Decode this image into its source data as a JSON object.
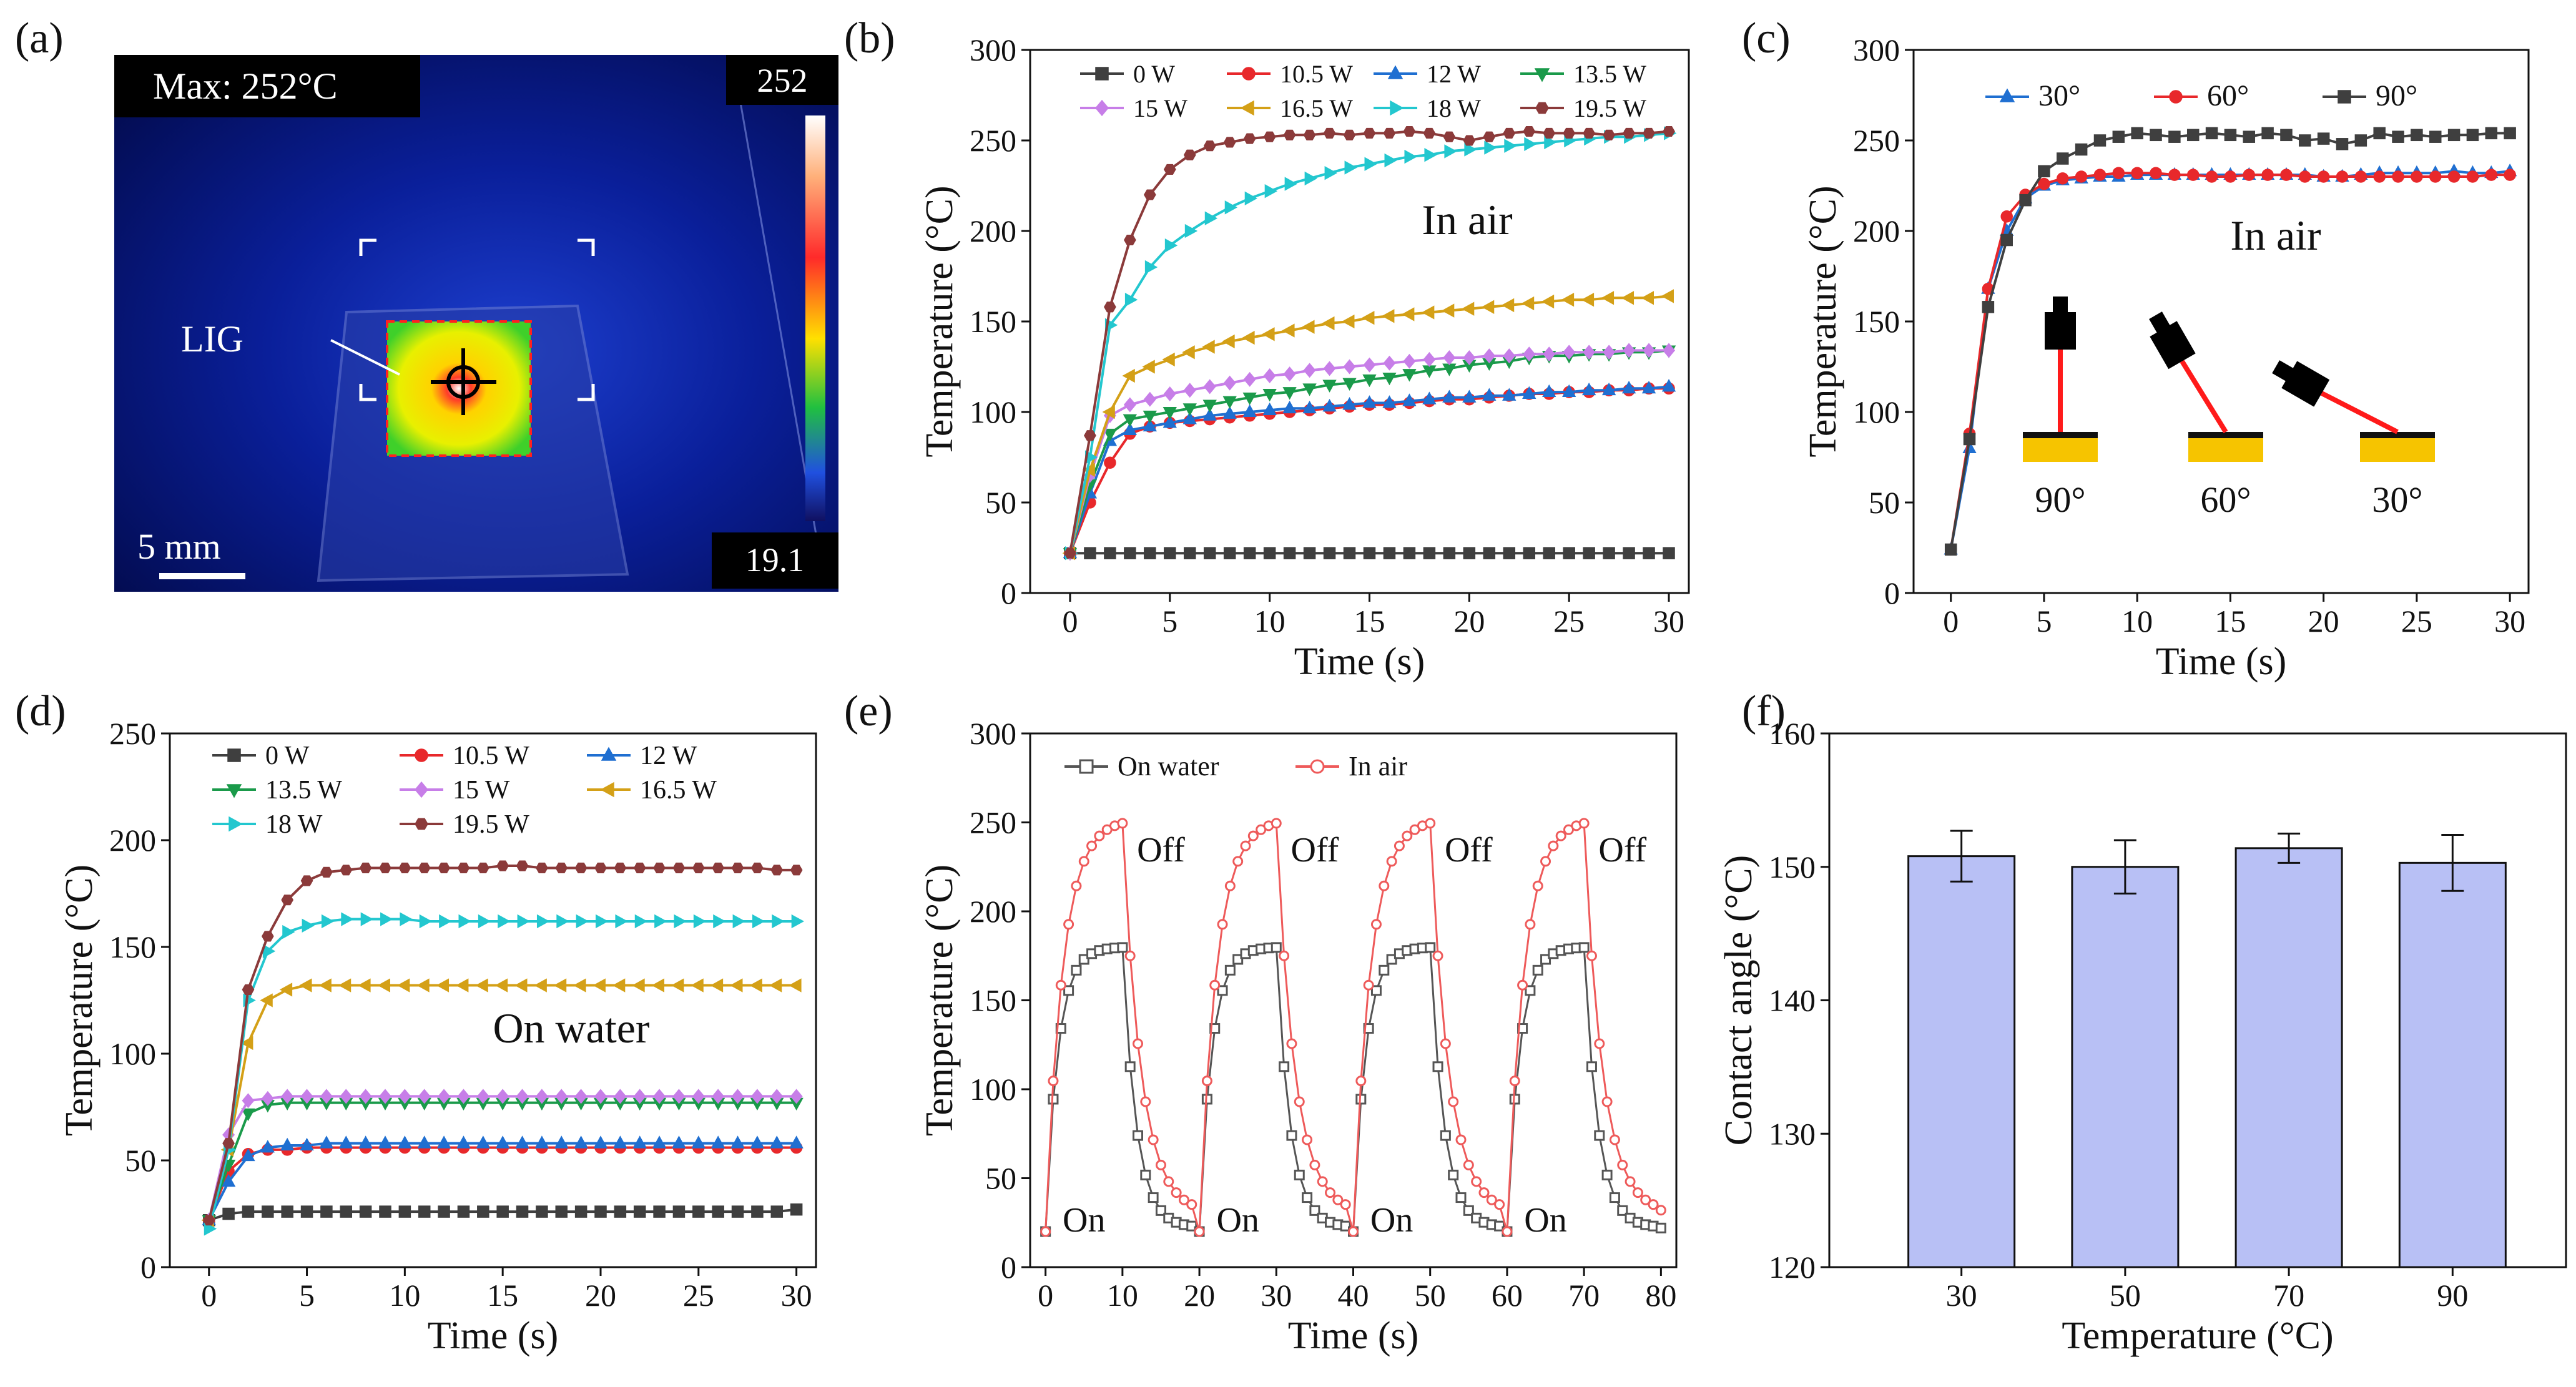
{
  "panel_labels": [
    "(a)",
    "(b)",
    "(c)",
    "(d)",
    "(e)",
    "(f)"
  ],
  "thermal_image": {
    "max_label": "Max: 252°C",
    "scale_max": "252",
    "scale_min": "19.1",
    "scale_bar": "5 mm",
    "annotation": "LIG"
  },
  "chart_data": [
    {
      "panel": "(b)",
      "type": "line",
      "title": "",
      "xlabel": "Time (s)",
      "ylabel": "Temperature (°C)",
      "xlim": [
        -2,
        31
      ],
      "ylim": [
        0,
        300
      ],
      "xticks": [
        0,
        5,
        10,
        15,
        20,
        25,
        30
      ],
      "yticks": [
        0,
        50,
        100,
        150,
        200,
        250,
        300
      ],
      "annotation": "In air",
      "x": [
        0,
        1,
        2,
        3,
        4,
        5,
        6,
        7,
        8,
        9,
        10,
        11,
        12,
        13,
        14,
        15,
        16,
        17,
        18,
        19,
        20,
        21,
        22,
        23,
        24,
        25,
        26,
        27,
        28,
        29,
        30
      ],
      "series": [
        {
          "name": "0 W",
          "color": "#3f3f3f",
          "marker": "square",
          "values": [
            22,
            22,
            22,
            22,
            22,
            22,
            22,
            22,
            22,
            22,
            22,
            22,
            22,
            22,
            22,
            22,
            22,
            22,
            22,
            22,
            22,
            22,
            22,
            22,
            22,
            22,
            22,
            22,
            22,
            22,
            22
          ]
        },
        {
          "name": "10.5 W",
          "color": "#e8282b",
          "marker": "circle",
          "values": [
            22,
            50,
            72,
            88,
            92,
            94,
            95,
            96,
            97,
            98,
            99,
            100,
            101,
            102,
            103,
            104,
            104,
            105,
            106,
            107,
            107,
            108,
            109,
            110,
            110,
            111,
            111,
            112,
            112,
            113,
            113
          ]
        },
        {
          "name": "12 W",
          "color": "#1f6fd1",
          "marker": "triangle-up",
          "values": [
            22,
            55,
            84,
            90,
            92,
            94,
            96,
            98,
            99,
            100,
            101,
            102,
            102,
            103,
            104,
            105,
            105,
            106,
            107,
            108,
            108,
            109,
            109,
            110,
            111,
            111,
            112,
            112,
            113,
            113,
            114
          ]
        },
        {
          "name": "13.5 W",
          "color": "#1a9a4a",
          "marker": "triangle-down",
          "values": [
            22,
            60,
            88,
            96,
            98,
            100,
            102,
            104,
            106,
            108,
            110,
            111,
            113,
            115,
            116,
            118,
            119,
            121,
            123,
            124,
            126,
            127,
            128,
            130,
            131,
            131,
            132,
            132,
            133,
            133,
            134
          ]
        },
        {
          "name": "15 W",
          "color": "#c77ee8",
          "marker": "diamond",
          "values": [
            22,
            65,
            98,
            104,
            107,
            110,
            112,
            114,
            116,
            118,
            120,
            121,
            123,
            124,
            125,
            126,
            127,
            128,
            129,
            130,
            130,
            131,
            131,
            132,
            132,
            133,
            133,
            133,
            134,
            134,
            134
          ]
        },
        {
          "name": "16.5 W",
          "color": "#d4a017",
          "marker": "triangle-left",
          "values": [
            22,
            68,
            100,
            120,
            125,
            129,
            133,
            136,
            139,
            141,
            143,
            145,
            147,
            149,
            150,
            152,
            153,
            154,
            155,
            156,
            157,
            158,
            159,
            160,
            161,
            162,
            162,
            163,
            163,
            163,
            164
          ]
        },
        {
          "name": "18 W",
          "color": "#23c7cf",
          "marker": "triangle-right",
          "values": [
            22,
            75,
            148,
            162,
            180,
            192,
            200,
            207,
            213,
            218,
            222,
            226,
            229,
            232,
            235,
            237,
            239,
            241,
            242,
            244,
            245,
            246,
            247,
            248,
            249,
            250,
            251,
            252,
            252,
            253,
            254
          ]
        },
        {
          "name": "19.5 W",
          "color": "#8b3a3a",
          "marker": "hexagon",
          "values": [
            22,
            87,
            158,
            195,
            220,
            234,
            242,
            247,
            249,
            251,
            252,
            253,
            253,
            254,
            253,
            254,
            254,
            255,
            254,
            252,
            250,
            252,
            254,
            255,
            254,
            254,
            254,
            253,
            254,
            254,
            255
          ]
        }
      ]
    },
    {
      "panel": "(c)",
      "type": "line",
      "title": "",
      "xlabel": "Time (s)",
      "ylabel": "Temperature (°C)",
      "xlim": [
        -2,
        31
      ],
      "ylim": [
        0,
        300
      ],
      "xticks": [
        0,
        5,
        10,
        15,
        20,
        25,
        30
      ],
      "yticks": [
        0,
        50,
        100,
        150,
        200,
        250,
        300
      ],
      "annotation": "In air",
      "inset_labels": [
        "90°",
        "60°",
        "30°"
      ],
      "x": [
        0,
        1,
        2,
        3,
        4,
        5,
        6,
        7,
        8,
        9,
        10,
        11,
        12,
        13,
        14,
        15,
        16,
        17,
        18,
        19,
        20,
        21,
        22,
        23,
        24,
        25,
        26,
        27,
        28,
        29,
        30
      ],
      "series": [
        {
          "name": "30°",
          "color": "#1f6fd1",
          "marker": "triangle-up",
          "values": [
            24,
            80,
            168,
            200,
            218,
            225,
            228,
            229,
            230,
            230,
            231,
            231,
            231,
            231,
            231,
            231,
            231,
            231,
            231,
            231,
            230,
            230,
            231,
            232,
            232,
            232,
            232,
            233,
            232,
            232,
            233
          ]
        },
        {
          "name": "60°",
          "color": "#e8282b",
          "marker": "circle",
          "values": [
            24,
            88,
            168,
            208,
            220,
            226,
            229,
            230,
            231,
            232,
            232,
            232,
            231,
            231,
            230,
            230,
            231,
            231,
            231,
            230,
            230,
            230,
            230,
            230,
            230,
            230,
            230,
            230,
            230,
            231,
            231
          ]
        },
        {
          "name": "90°",
          "color": "#3f3f3f",
          "marker": "square",
          "values": [
            24,
            85,
            158,
            195,
            217,
            233,
            240,
            245,
            250,
            252,
            254,
            253,
            252,
            253,
            254,
            253,
            252,
            254,
            253,
            250,
            251,
            248,
            250,
            254,
            252,
            253,
            252,
            253,
            253,
            254,
            254
          ]
        }
      ]
    },
    {
      "panel": "(d)",
      "type": "line",
      "title": "",
      "xlabel": "Time (s)",
      "ylabel": "Temperature (°C)",
      "xlim": [
        -2,
        31
      ],
      "ylim": [
        0,
        250
      ],
      "xticks": [
        0,
        5,
        10,
        15,
        20,
        25,
        30
      ],
      "yticks": [
        0,
        50,
        100,
        150,
        200,
        250
      ],
      "annotation": "On water",
      "x": [
        0,
        1,
        2,
        3,
        4,
        5,
        6,
        7,
        8,
        9,
        10,
        11,
        12,
        13,
        14,
        15,
        16,
        17,
        18,
        19,
        20,
        21,
        22,
        23,
        24,
        25,
        26,
        27,
        28,
        29,
        30
      ],
      "series": [
        {
          "name": "0 W",
          "color": "#3f3f3f",
          "marker": "square",
          "values": [
            22,
            25,
            26,
            26,
            26,
            26,
            26,
            26,
            26,
            26,
            26,
            26,
            26,
            26,
            26,
            26,
            26,
            26,
            26,
            26,
            26,
            26,
            26,
            26,
            26,
            26,
            26,
            26,
            26,
            26,
            27
          ]
        },
        {
          "name": "10.5 W",
          "color": "#e8282b",
          "marker": "circle",
          "values": [
            22,
            45,
            53,
            55,
            55,
            56,
            56,
            56,
            56,
            56,
            56,
            56,
            56,
            56,
            56,
            56,
            56,
            56,
            56,
            56,
            56,
            56,
            56,
            56,
            56,
            56,
            56,
            56,
            56,
            56,
            56
          ]
        },
        {
          "name": "12 W",
          "color": "#1f6fd1",
          "marker": "triangle-up",
          "values": [
            22,
            40,
            52,
            56,
            57,
            57,
            58,
            58,
            58,
            58,
            58,
            58,
            58,
            58,
            58,
            58,
            58,
            58,
            58,
            58,
            58,
            58,
            58,
            58,
            58,
            58,
            58,
            58,
            58,
            58,
            58
          ]
        },
        {
          "name": "13.5 W",
          "color": "#1a9a4a",
          "marker": "triangle-down",
          "values": [
            22,
            48,
            72,
            76,
            77,
            77,
            77,
            77,
            77,
            77,
            77,
            77,
            77,
            77,
            77,
            77,
            77,
            77,
            77,
            77,
            77,
            77,
            77,
            77,
            77,
            77,
            77,
            77,
            77,
            77,
            77
          ]
        },
        {
          "name": "15 W",
          "color": "#c77ee8",
          "marker": "diamond",
          "values": [
            22,
            62,
            78,
            79,
            80,
            80,
            80,
            80,
            80,
            80,
            80,
            80,
            80,
            80,
            80,
            80,
            80,
            80,
            80,
            80,
            80,
            80,
            80,
            80,
            80,
            80,
            80,
            80,
            80,
            80,
            80
          ]
        },
        {
          "name": "16.5 W",
          "color": "#d4a017",
          "marker": "triangle-left",
          "values": [
            22,
            55,
            105,
            125,
            130,
            132,
            132,
            132,
            132,
            132,
            132,
            132,
            132,
            132,
            132,
            132,
            132,
            132,
            132,
            132,
            132,
            132,
            132,
            132,
            132,
            132,
            132,
            132,
            132,
            132,
            132
          ]
        },
        {
          "name": "18 W",
          "color": "#23c7cf",
          "marker": "triangle-right",
          "values": [
            18,
            55,
            125,
            148,
            157,
            160,
            162,
            163,
            163,
            163,
            163,
            162,
            162,
            162,
            162,
            162,
            162,
            162,
            162,
            162,
            162,
            162,
            162,
            162,
            162,
            162,
            162,
            162,
            162,
            162,
            162
          ]
        },
        {
          "name": "19.5 W",
          "color": "#8b3a3a",
          "marker": "hexagon",
          "values": [
            22,
            58,
            130,
            155,
            172,
            181,
            185,
            186,
            187,
            187,
            187,
            187,
            187,
            187,
            187,
            188,
            188,
            187,
            187,
            187,
            187,
            187,
            187,
            187,
            187,
            187,
            187,
            187,
            187,
            186,
            186
          ]
        }
      ]
    },
    {
      "panel": "(e)",
      "type": "line",
      "title": "",
      "xlabel": "Time (s)",
      "ylabel": "Temperature (°C)",
      "xlim": [
        -2,
        82
      ],
      "ylim": [
        0,
        300
      ],
      "xticks": [
        0,
        10,
        20,
        30,
        40,
        50,
        60,
        70,
        80
      ],
      "yticks": [
        0,
        50,
        100,
        150,
        200,
        250,
        300
      ],
      "on_labels": [
        "On",
        "On",
        "On",
        "On"
      ],
      "off_labels": [
        "Off",
        "Off",
        "Off",
        "Off"
      ],
      "series": [
        {
          "name": "On water",
          "color": "#555555",
          "marker": "open-square",
          "values": []
        },
        {
          "name": "In air",
          "color": "#ee5a5a",
          "marker": "open-circle",
          "values": []
        }
      ]
    },
    {
      "panel": "(f)",
      "type": "bar",
      "title": "",
      "xlabel": "Temperature (°C)",
      "ylabel": "Contact angle (°C)",
      "categories": [
        "30",
        "50",
        "70",
        "90"
      ],
      "values": [
        150.8,
        150.0,
        151.4,
        150.3
      ],
      "errors": [
        1.9,
        2.0,
        1.1,
        2.1
      ],
      "ylim": [
        120,
        160
      ],
      "yticks": [
        120,
        130,
        140,
        150,
        160
      ],
      "bar_color": "#b8c0f5"
    }
  ]
}
